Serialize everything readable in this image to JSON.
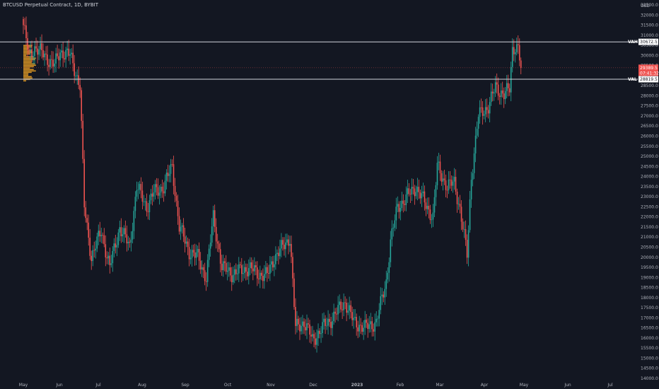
{
  "header": {
    "title": "BTCUSD Perpetual Contract, 1D, BYBIT"
  },
  "colors": {
    "background": "#131722",
    "up": "#26a69a",
    "down": "#ef5350",
    "text": "#b2b5be",
    "volume_profile": "#f5a623"
  },
  "chart_data": {
    "type": "candlestick",
    "title": "BTCUSD Perpetual Contract, 1D, BYBIT",
    "y_unit_label": "USD",
    "ylim": [
      14000,
      32700
    ],
    "y_ticks": [
      32500,
      32000,
      31500,
      31000,
      30500,
      30000,
      29500,
      29000,
      28500,
      28000,
      27500,
      27000,
      26500,
      26000,
      25500,
      25000,
      24500,
      24000,
      23500,
      23000,
      22500,
      22000,
      21500,
      21000,
      20500,
      20000,
      19500,
      19000,
      18500,
      18000,
      17500,
      17000,
      16500,
      16000,
      15500,
      15000,
      14500,
      14000
    ],
    "x_labels": [
      "May",
      "Jun",
      "Jul",
      "Aug",
      "Sep",
      "Oct",
      "Nov",
      "Dec",
      "2023",
      "Feb",
      "Mar",
      "Apr",
      "May",
      "Jun",
      "Jul"
    ],
    "levels": [
      {
        "name": "VAH",
        "value": 30672.5,
        "label": "30672.5"
      },
      {
        "name": "VAL",
        "value": 28819.5,
        "label": "28819.5"
      }
    ],
    "last_price": {
      "value": 29389.5,
      "label": "29389.5",
      "countdown": "07:41:32"
    },
    "close_path": [
      [
        "2022-05-01",
        31500
      ],
      [
        "2022-05-05",
        30000
      ],
      [
        "2022-05-09",
        30400
      ],
      [
        "2022-05-16",
        30000
      ],
      [
        "2022-05-23",
        29500
      ],
      [
        "2022-05-27",
        30200
      ],
      [
        "2022-06-03",
        30000
      ],
      [
        "2022-06-10",
        28500
      ],
      [
        "2022-06-13",
        22500
      ],
      [
        "2022-06-18",
        20000
      ],
      [
        "2022-06-25",
        21300
      ],
      [
        "2022-07-01",
        19500
      ],
      [
        "2022-07-08",
        21500
      ],
      [
        "2022-07-15",
        20500
      ],
      [
        "2022-07-20",
        23500
      ],
      [
        "2022-07-27",
        22500
      ],
      [
        "2022-08-01",
        23200
      ],
      [
        "2022-08-08",
        23500
      ],
      [
        "2022-08-14",
        24500
      ],
      [
        "2022-08-19",
        21500
      ],
      [
        "2022-08-26",
        20300
      ],
      [
        "2022-09-01",
        20000
      ],
      [
        "2022-09-07",
        19000
      ],
      [
        "2022-09-12",
        22000
      ],
      [
        "2022-09-18",
        19500
      ],
      [
        "2022-09-25",
        19200
      ],
      [
        "2022-10-01",
        19300
      ],
      [
        "2022-10-07",
        19500
      ],
      [
        "2022-10-13",
        19200
      ],
      [
        "2022-10-20",
        19100
      ],
      [
        "2022-10-25",
        20000
      ],
      [
        "2022-10-31",
        20500
      ],
      [
        "2022-11-05",
        21000
      ],
      [
        "2022-11-09",
        16500
      ],
      [
        "2022-11-15",
        16800
      ],
      [
        "2022-11-21",
        15900
      ],
      [
        "2022-11-28",
        16500
      ],
      [
        "2022-12-05",
        17000
      ],
      [
        "2022-12-14",
        17800
      ],
      [
        "2022-12-20",
        16800
      ],
      [
        "2022-12-28",
        16500
      ],
      [
        "2023-01-05",
        16800
      ],
      [
        "2023-01-12",
        18800
      ],
      [
        "2023-01-15",
        20800
      ],
      [
        "2023-01-20",
        22500
      ],
      [
        "2023-01-28",
        23100
      ],
      [
        "2023-02-02",
        23500
      ],
      [
        "2023-02-08",
        22700
      ],
      [
        "2023-02-14",
        22000
      ],
      [
        "2023-02-17",
        24500
      ],
      [
        "2023-02-24",
        23500
      ],
      [
        "2023-03-01",
        23700
      ],
      [
        "2023-03-05",
        22400
      ],
      [
        "2023-03-10",
        20100
      ],
      [
        "2023-03-13",
        24000
      ],
      [
        "2023-03-18",
        27000
      ],
      [
        "2023-03-25",
        27500
      ],
      [
        "2023-03-30",
        28400
      ],
      [
        "2023-04-05",
        28100
      ],
      [
        "2023-04-09",
        28300
      ],
      [
        "2023-04-11",
        30300
      ],
      [
        "2023-04-13",
        30500
      ],
      [
        "2023-04-15",
        30400
      ],
      [
        "2023-04-17",
        29389.5
      ]
    ],
    "grid": false
  }
}
